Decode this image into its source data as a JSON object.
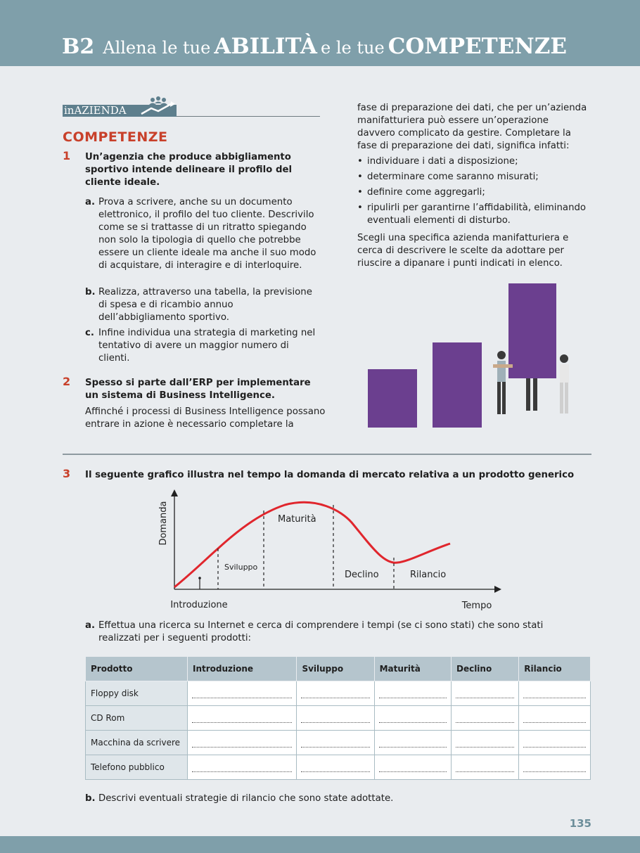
{
  "header": {
    "code": "B2",
    "pre": "Allena le tue",
    "word1": "ABILITÀ",
    "mid": "e le tue",
    "word2": "COMPETENZE"
  },
  "section": {
    "badge": "inAZIENDA",
    "heading": "COMPETENZE"
  },
  "ex1": {
    "number": "1",
    "question": "Un’agenzia che produce abbigliamento sportivo intende delineare il profilo del cliente ideale.",
    "items": [
      {
        "label": "a.",
        "text": "Prova a scrivere, anche su un documento elettronico, il profilo del tuo cliente. Descrivilo come se si trattasse di un ritratto spiegando non solo la tipologia di quello che potrebbe essere un cliente ideale ma anche il suo modo di acquistare, di interagire e di interloquire."
      },
      {
        "label": "b.",
        "text": "Realizza, attraverso una tabella, la previsione di spesa e di ricambio annuo dell’abbigliamento sportivo."
      },
      {
        "label": "c.",
        "text": "Infine individua una strategia di marketing nel tentativo di avere un maggior numero di clienti."
      }
    ]
  },
  "ex2": {
    "number": "2",
    "question": "Spesso si parte dall’ERP per implementare un sistema di Business Intelligence.",
    "intro": "Affinché i processi di Business Intelligence possano entrare in azione è necessario completare la",
    "continued": "fase di preparazione dei dati, che per un’azienda manifatturiera può essere un’operazione davvero complicato da gestire. Completare la fase di preparazione dei dati, significa infatti:",
    "bullets": [
      "individuare i dati a disposizione;",
      "determinare come saranno misurati;",
      "definire come aggregarli;",
      "ripulirli per garantirne l’affidabilità, eliminando eventuali elementi di disturbo."
    ],
    "closing": "Scegli una specifica azienda manifatturiera e cerca di descrivere le scelte da adottare per riuscire a dipanare i punti indicati in elenco."
  },
  "ex3": {
    "number": "3",
    "question": "Il seguente grafico illustra nel tempo la domanda di mercato relativa a un prodotto generico",
    "item_a_label": "a.",
    "item_a_text": "Effettua una ricerca su Internet e cerca di comprendere i tempi (se ci sono stati) che sono stati realizzati per i seguenti prodotti:",
    "item_b_label": "b.",
    "item_b_text": "Descrivi eventuali strategie di rilancio che sono state adottate."
  },
  "chart_data": {
    "type": "line",
    "ylabel": "Domanda",
    "xlabel": "Tempo",
    "phases": [
      "Introduzione",
      "Sviluppo",
      "Maturità",
      "Declino",
      "Rilancio"
    ],
    "curve_color": "#e0262d"
  },
  "table": {
    "headers": [
      "Prodotto",
      "Introduzione",
      "Sviluppo",
      "Maturità",
      "Declino",
      "Rilancio"
    ],
    "rows": [
      "Floppy disk",
      "CD Rom",
      "Macchina da scrivere",
      "Telefono pubblico"
    ]
  },
  "colors": {
    "header_bg": "#7f9faa",
    "accent_red": "#c8402a",
    "bars_purple": "#6b3f8f"
  },
  "page": {
    "number": "135"
  }
}
